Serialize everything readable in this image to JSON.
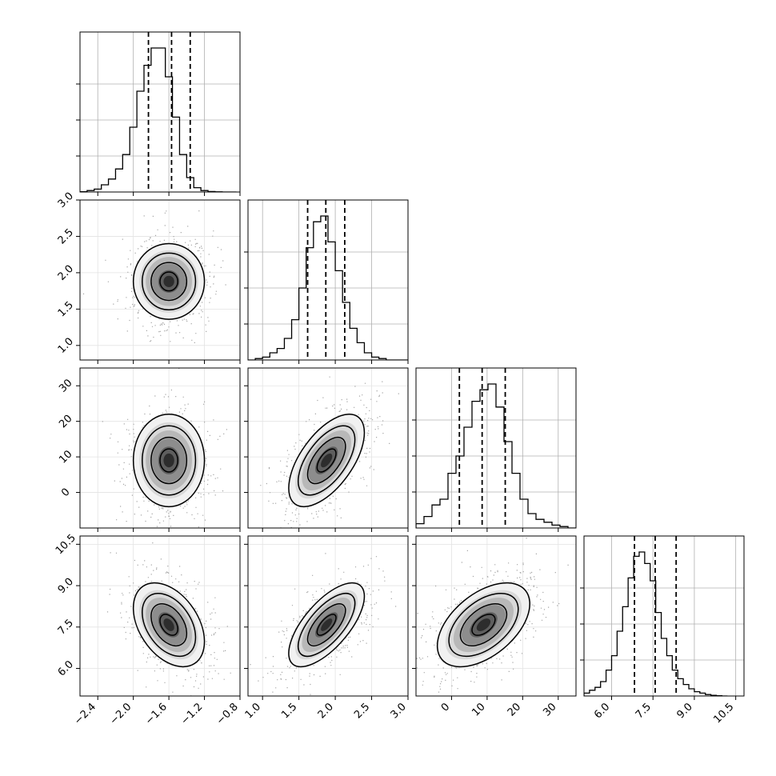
{
  "chart_data": {
    "type": "corner",
    "n_params": 4,
    "grid": true,
    "parameters": [
      {
        "range": [
          -2.6,
          -0.8
        ],
        "ticks": [
          -2.4,
          -2.0,
          -1.6,
          -1.2,
          -0.8
        ],
        "tick_labels": [
          "−2.4",
          "−2.0",
          "−1.6",
          "−1.2",
          "−0.8"
        ],
        "quantiles": [
          -1.83,
          -1.57,
          -1.36
        ],
        "hist_edges": [
          -2.6,
          -2.52,
          -2.44,
          -2.36,
          -2.28,
          -2.2,
          -2.12,
          -2.04,
          -1.96,
          -1.88,
          -1.8,
          -1.72,
          -1.64,
          -1.56,
          -1.48,
          -1.4,
          -1.32,
          -1.24,
          -1.16,
          -1.08,
          -1.0,
          -0.92,
          -0.84
        ],
        "hist_counts": [
          0.002,
          0.01,
          0.02,
          0.05,
          0.09,
          0.16,
          0.26,
          0.45,
          0.7,
          0.88,
          1.0,
          1.0,
          0.8,
          0.52,
          0.26,
          0.1,
          0.03,
          0.01,
          0.003,
          0.001,
          0.0,
          0.0
        ]
      },
      {
        "range": [
          0.8,
          3.0
        ],
        "ticks": [
          1.0,
          1.5,
          2.0,
          2.5,
          3.0
        ],
        "tick_labels": [
          "1.0",
          "1.5",
          "2.0",
          "2.5",
          "3.0"
        ],
        "y_ticks": [
          1.0,
          1.5,
          2.0,
          2.5,
          3.0
        ],
        "y_tick_labels": [
          "1.0",
          "1.5",
          "2.0",
          "2.5",
          "3.0"
        ],
        "quantiles": [
          1.62,
          1.87,
          2.13
        ],
        "hist_edges": [
          0.8,
          0.9,
          1.0,
          1.1,
          1.2,
          1.3,
          1.4,
          1.5,
          1.6,
          1.7,
          1.8,
          1.9,
          2.0,
          2.1,
          2.2,
          2.3,
          2.4,
          2.5,
          2.6,
          2.7,
          2.8,
          2.9,
          3.0
        ],
        "hist_counts": [
          0.0,
          0.01,
          0.02,
          0.05,
          0.08,
          0.15,
          0.28,
          0.5,
          0.78,
          0.96,
          1.0,
          0.82,
          0.62,
          0.4,
          0.22,
          0.12,
          0.05,
          0.02,
          0.01,
          0.0,
          0.0,
          0.0
        ]
      },
      {
        "range": [
          -10,
          35
        ],
        "ticks": [
          0,
          10,
          20,
          30
        ],
        "tick_labels": [
          "0",
          "10",
          "20",
          "30"
        ],
        "y_ticks": [
          0,
          10,
          20,
          30
        ],
        "y_tick_labels": [
          "0",
          "10",
          "20",
          "30"
        ],
        "quantiles": [
          2.2,
          8.6,
          15.1
        ],
        "hist_edges": [
          -10.0,
          -7.75,
          -5.5,
          -3.25,
          -1.0,
          1.25,
          3.5,
          5.75,
          8.0,
          10.25,
          12.5,
          14.75,
          17.0,
          19.25,
          21.5,
          23.75,
          26.0,
          28.25,
          30.5,
          32.75,
          35.0
        ],
        "hist_counts": [
          0.03,
          0.08,
          0.16,
          0.2,
          0.38,
          0.5,
          0.7,
          0.88,
          0.96,
          1.0,
          0.84,
          0.6,
          0.38,
          0.2,
          0.1,
          0.06,
          0.04,
          0.02,
          0.01,
          0.0
        ]
      },
      {
        "range": [
          5.0,
          10.8
        ],
        "ticks": [
          6.0,
          7.5,
          9.0,
          10.5
        ],
        "tick_labels": [
          "6.0",
          "7.5",
          "9.0",
          "10.5"
        ],
        "y_ticks": [
          6.0,
          7.5,
          9.0,
          10.5
        ],
        "y_tick_labels": [
          "6.0",
          "7.5",
          "9.0",
          "10.5"
        ],
        "quantiles": [
          6.83,
          7.58,
          8.34
        ],
        "hist_edges": [
          5.0,
          5.2,
          5.4,
          5.6,
          5.8,
          6.0,
          6.2,
          6.4,
          6.6,
          6.8,
          7.0,
          7.2,
          7.4,
          7.6,
          7.8,
          8.0,
          8.2,
          8.4,
          8.6,
          8.8,
          9.0,
          9.2,
          9.4,
          9.6,
          9.8,
          10.0,
          10.2
        ],
        "hist_counts": [
          0.02,
          0.04,
          0.06,
          0.1,
          0.18,
          0.28,
          0.45,
          0.62,
          0.82,
          0.97,
          1.0,
          0.92,
          0.8,
          0.58,
          0.4,
          0.28,
          0.18,
          0.12,
          0.08,
          0.05,
          0.03,
          0.02,
          0.01,
          0.005,
          0.002,
          0.0
        ]
      }
    ],
    "pairs": [
      {
        "x": 0,
        "y": 1,
        "mean": [
          -1.6,
          1.88
        ],
        "sd": [
          0.2,
          0.26
        ],
        "rho": 0.0
      },
      {
        "x": 0,
        "y": 2,
        "mean": [
          -1.6,
          9.0
        ],
        "sd": [
          0.2,
          6.5
        ],
        "rho": 0.0
      },
      {
        "x": 1,
        "y": 2,
        "mean": [
          1.88,
          9.0
        ],
        "sd": [
          0.26,
          6.5
        ],
        "rho": 0.6
      },
      {
        "x": 0,
        "y": 3,
        "mean": [
          -1.6,
          7.58
        ],
        "sd": [
          0.2,
          0.76
        ],
        "rho": -0.4
      },
      {
        "x": 1,
        "y": 3,
        "mean": [
          1.88,
          7.58
        ],
        "sd": [
          0.26,
          0.76
        ],
        "rho": 0.68
      },
      {
        "x": 2,
        "y": 3,
        "mean": [
          9.0,
          7.58
        ],
        "sd": [
          6.5,
          0.76
        ],
        "rho": 0.5
      }
    ],
    "contour_levels": [
      0.5,
      1.0,
      1.5,
      2.0
    ],
    "colors": {
      "line": "#000000",
      "grid": "#b0b0b0",
      "points": "#a6a6a6",
      "background": "#ffffff"
    }
  }
}
